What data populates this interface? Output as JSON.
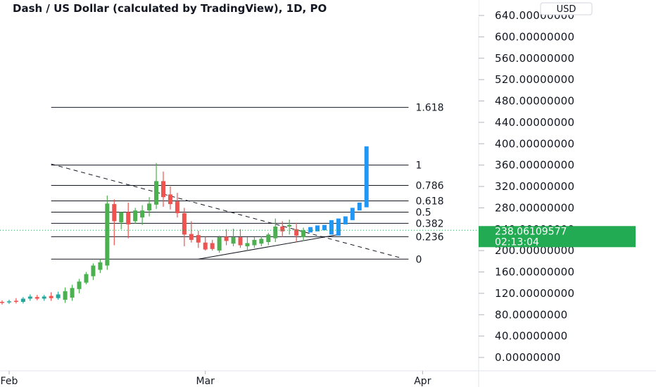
{
  "chart_data": {
    "type": "candlestick",
    "title": "Dash / US Dollar (calculated by TradingView), 1D, PO",
    "currency": "USD",
    "colors": {
      "up": "#26a69a",
      "up_bright": "#4caf50",
      "down": "#ef5350",
      "projection": "#2196f3",
      "current_price": "#22ab52"
    },
    "y_ticks": [
      "640.00000000",
      "600.00000000",
      "560.00000000",
      "520.00000000",
      "480.00000000",
      "440.00000000",
      "400.00000000",
      "360.00000000",
      "320.00000000",
      "280.00000000",
      "240.00000000",
      "200.00000000",
      "160.00000000",
      "120.00000000",
      "80.00000000",
      "40.00000000",
      "0.00000000"
    ],
    "ylim": [
      0,
      640
    ],
    "x_ticks": [
      "Feb",
      "Mar",
      "Apr"
    ],
    "x_tick_days": [
      0,
      28,
      59
    ],
    "xlim": [
      -1,
      67
    ],
    "current_price": {
      "value": "238.06109577",
      "countdown": "02:13:04",
      "level": 238
    },
    "fibonacci": {
      "levels": [
        {
          "label": "1.618",
          "price": 468
        },
        {
          "label": "1",
          "price": 360
        },
        {
          "label": "0.786",
          "price": 322
        },
        {
          "label": "0.618",
          "price": 293
        },
        {
          "label": "0.5",
          "price": 272
        },
        {
          "label": "0.382",
          "price": 251
        },
        {
          "label": "0.236",
          "price": 226
        },
        {
          "label": "0",
          "price": 184
        }
      ],
      "start_day": 6,
      "end_day": 57
    },
    "trendlines": [
      {
        "style": "dashed",
        "from": {
          "day": 6,
          "price": 362
        },
        "to": {
          "day": 56,
          "price": 186
        }
      },
      {
        "style": "solid",
        "from": {
          "day": 27,
          "price": 184
        },
        "to": {
          "day": 47,
          "price": 230
        }
      }
    ],
    "candles": [
      {
        "day": -1,
        "o": 104,
        "h": 107,
        "l": 99,
        "c": 102
      },
      {
        "day": 0,
        "o": 103,
        "h": 108,
        "l": 100,
        "c": 105
      },
      {
        "day": 1,
        "o": 106,
        "h": 111,
        "l": 101,
        "c": 104
      },
      {
        "day": 2,
        "o": 104,
        "h": 113,
        "l": 101,
        "c": 110
      },
      {
        "day": 3,
        "o": 110,
        "h": 118,
        "l": 106,
        "c": 114
      },
      {
        "day": 4,
        "o": 113,
        "h": 117,
        "l": 107,
        "c": 110
      },
      {
        "day": 5,
        "o": 110,
        "h": 117,
        "l": 106,
        "c": 114
      },
      {
        "day": 6,
        "o": 115,
        "h": 122,
        "l": 106,
        "c": 111
      },
      {
        "day": 7,
        "o": 111,
        "h": 123,
        "l": 108,
        "c": 118
      },
      {
        "day": 8,
        "o": 108,
        "h": 131,
        "l": 102,
        "c": 124
      },
      {
        "day": 9,
        "o": 112,
        "h": 136,
        "l": 106,
        "c": 130
      },
      {
        "day": 10,
        "o": 128,
        "h": 147,
        "l": 120,
        "c": 142
      },
      {
        "day": 11,
        "o": 140,
        "h": 160,
        "l": 137,
        "c": 156
      },
      {
        "day": 12,
        "o": 152,
        "h": 176,
        "l": 145,
        "c": 172
      },
      {
        "day": 13,
        "o": 164,
        "h": 184,
        "l": 158,
        "c": 178
      },
      {
        "day": 14,
        "o": 172,
        "h": 303,
        "l": 164,
        "c": 288
      },
      {
        "day": 15,
        "o": 287,
        "h": 296,
        "l": 210,
        "c": 255
      },
      {
        "day": 16,
        "o": 253,
        "h": 272,
        "l": 240,
        "c": 272
      },
      {
        "day": 17,
        "o": 272,
        "h": 290,
        "l": 223,
        "c": 249
      },
      {
        "day": 18,
        "o": 255,
        "h": 280,
        "l": 250,
        "c": 275
      },
      {
        "day": 19,
        "o": 262,
        "h": 285,
        "l": 248,
        "c": 275
      },
      {
        "day": 20,
        "o": 275,
        "h": 300,
        "l": 264,
        "c": 288
      },
      {
        "day": 21,
        "o": 286,
        "h": 364,
        "l": 278,
        "c": 330
      },
      {
        "day": 22,
        "o": 330,
        "h": 348,
        "l": 282,
        "c": 300
      },
      {
        "day": 23,
        "o": 305,
        "h": 320,
        "l": 277,
        "c": 287
      },
      {
        "day": 24,
        "o": 292,
        "h": 308,
        "l": 262,
        "c": 270
      },
      {
        "day": 25,
        "o": 270,
        "h": 280,
        "l": 208,
        "c": 230
      },
      {
        "day": 26,
        "o": 231,
        "h": 255,
        "l": 215,
        "c": 220
      },
      {
        "day": 27,
        "o": 229,
        "h": 237,
        "l": 205,
        "c": 215
      },
      {
        "day": 28,
        "o": 215,
        "h": 226,
        "l": 200,
        "c": 202
      },
      {
        "day": 29,
        "o": 214,
        "h": 220,
        "l": 200,
        "c": 203
      },
      {
        "day": 30,
        "o": 200,
        "h": 228,
        "l": 196,
        "c": 225
      },
      {
        "day": 31,
        "o": 226,
        "h": 240,
        "l": 210,
        "c": 218
      },
      {
        "day": 32,
        "o": 213,
        "h": 241,
        "l": 208,
        "c": 225
      },
      {
        "day": 33,
        "o": 225,
        "h": 240,
        "l": 205,
        "c": 210
      },
      {
        "day": 34,
        "o": 208,
        "h": 225,
        "l": 200,
        "c": 214
      },
      {
        "day": 35,
        "o": 210,
        "h": 225,
        "l": 205,
        "c": 220
      },
      {
        "day": 36,
        "o": 213,
        "h": 227,
        "l": 208,
        "c": 222
      },
      {
        "day": 37,
        "o": 216,
        "h": 233,
        "l": 210,
        "c": 230
      },
      {
        "day": 38,
        "o": 223,
        "h": 260,
        "l": 216,
        "c": 245
      },
      {
        "day": 39,
        "o": 245,
        "h": 255,
        "l": 225,
        "c": 236
      },
      {
        "day": 40,
        "o": 245,
        "h": 258,
        "l": 230,
        "c": 248
      },
      {
        "day": 41,
        "o": 240,
        "h": 252,
        "l": 216,
        "c": 228
      },
      {
        "day": 42,
        "o": 225,
        "h": 243,
        "l": 218,
        "c": 238
      }
    ],
    "projection_bars": [
      {
        "day": 43,
        "o": 234,
        "c": 244
      },
      {
        "day": 44,
        "o": 236,
        "c": 247
      },
      {
        "day": 45,
        "o": 238,
        "c": 248
      },
      {
        "day": 46,
        "o": 230,
        "c": 257
      },
      {
        "day": 47,
        "o": 228,
        "c": 260
      },
      {
        "day": 48,
        "o": 249,
        "c": 264
      },
      {
        "day": 49,
        "o": 257,
        "c": 280
      },
      {
        "day": 50,
        "o": 275,
        "c": 290
      },
      {
        "day": 51,
        "o": 281,
        "c": 395
      }
    ]
  }
}
